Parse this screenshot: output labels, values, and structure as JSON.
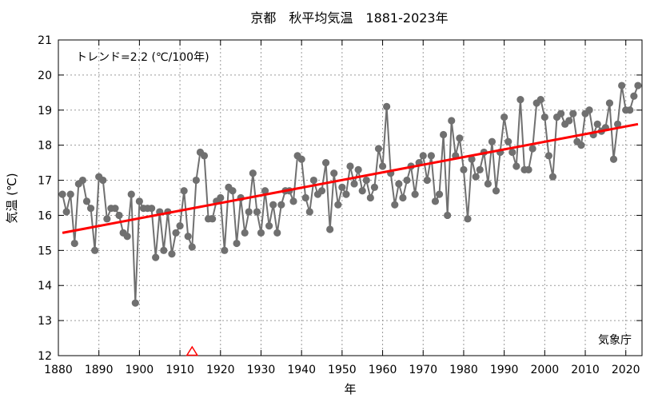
{
  "chart_data": {
    "type": "line",
    "title": "京都　秋平均気温　1881-2023年",
    "xlabel": "年",
    "ylabel": "気温 (℃)",
    "xlim": [
      1880,
      2024
    ],
    "ylim": [
      12,
      21
    ],
    "x_ticks": [
      1880,
      1890,
      1900,
      1910,
      1920,
      1930,
      1940,
      1950,
      1960,
      1970,
      1980,
      1990,
      2000,
      2010,
      2020
    ],
    "y_ticks": [
      12,
      13,
      14,
      15,
      16,
      17,
      18,
      19,
      20,
      21
    ],
    "grid": true,
    "trend_label": "トレンド=2.2 (℃/100年)",
    "source_label": "気象庁",
    "trend_line": {
      "x": [
        1881,
        2023
      ],
      "y": [
        15.5,
        18.6
      ],
      "color": "#ff0000"
    },
    "series_color": "#707070",
    "marker_note": {
      "type": "triangle",
      "x": 1913,
      "color": "#ff0000"
    },
    "x": [
      1881,
      1882,
      1883,
      1884,
      1885,
      1886,
      1887,
      1888,
      1889,
      1890,
      1891,
      1892,
      1893,
      1894,
      1895,
      1896,
      1897,
      1898,
      1899,
      1900,
      1901,
      1902,
      1903,
      1904,
      1905,
      1906,
      1907,
      1908,
      1909,
      1910,
      1911,
      1912,
      1913,
      1914,
      1915,
      1916,
      1917,
      1918,
      1919,
      1920,
      1921,
      1922,
      1923,
      1924,
      1925,
      1926,
      1927,
      1928,
      1929,
      1930,
      1931,
      1932,
      1933,
      1934,
      1935,
      1936,
      1937,
      1938,
      1939,
      1940,
      1941,
      1942,
      1943,
      1944,
      1945,
      1946,
      1947,
      1948,
      1949,
      1950,
      1951,
      1952,
      1953,
      1954,
      1955,
      1956,
      1957,
      1958,
      1959,
      1960,
      1961,
      1962,
      1963,
      1964,
      1965,
      1966,
      1967,
      1968,
      1969,
      1970,
      1971,
      1972,
      1973,
      1974,
      1975,
      1976,
      1977,
      1978,
      1979,
      1980,
      1981,
      1982,
      1983,
      1984,
      1985,
      1986,
      1987,
      1988,
      1989,
      1990,
      1991,
      1992,
      1993,
      1994,
      1995,
      1996,
      1997,
      1998,
      1999,
      2000,
      2001,
      2002,
      2003,
      2004,
      2005,
      2006,
      2007,
      2008,
      2009,
      2010,
      2011,
      2012,
      2013,
      2014,
      2015,
      2016,
      2017,
      2018,
      2019,
      2020,
      2021,
      2022,
      2023
    ],
    "y": [
      16.6,
      16.1,
      16.6,
      15.2,
      16.9,
      17.0,
      16.4,
      16.2,
      15.0,
      17.1,
      17.0,
      15.9,
      16.2,
      16.2,
      16.0,
      15.5,
      15.4,
      16.6,
      13.5,
      16.4,
      16.2,
      16.2,
      16.2,
      14.8,
      16.1,
      15.0,
      16.1,
      14.9,
      15.5,
      15.7,
      16.7,
      15.4,
      15.1,
      17.0,
      17.8,
      17.7,
      15.9,
      15.9,
      16.4,
      16.5,
      15.0,
      16.8,
      16.7,
      15.2,
      16.5,
      15.5,
      16.1,
      17.2,
      16.1,
      15.5,
      16.7,
      15.7,
      16.3,
      15.5,
      16.3,
      16.7,
      16.7,
      16.4,
      17.7,
      17.6,
      16.5,
      16.1,
      17.0,
      16.6,
      16.7,
      17.5,
      15.6,
      17.2,
      16.3,
      16.8,
      16.6,
      17.4,
      16.9,
      17.3,
      16.7,
      17.0,
      16.5,
      16.8,
      17.9,
      17.4,
      19.1,
      17.2,
      16.3,
      16.9,
      16.5,
      17.0,
      17.4,
      16.6,
      17.5,
      17.7,
      17.0,
      17.7,
      16.4,
      16.6,
      18.3,
      16.0,
      18.7,
      17.7,
      18.2,
      17.3,
      15.9,
      17.6,
      17.1,
      17.3,
      17.8,
      16.9,
      18.1,
      16.7,
      17.8,
      18.8,
      18.1,
      17.8,
      17.4,
      19.3,
      17.3,
      17.3,
      17.9,
      19.2,
      19.3,
      18.8,
      17.7,
      17.1,
      18.8,
      18.9,
      18.6,
      18.7,
      18.9,
      18.1,
      18.0,
      18.9,
      19.0,
      18.3,
      18.6,
      18.4,
      18.5,
      19.2,
      17.6,
      18.6,
      19.7,
      19.0,
      19.0,
      19.4,
      19.7
    ]
  }
}
